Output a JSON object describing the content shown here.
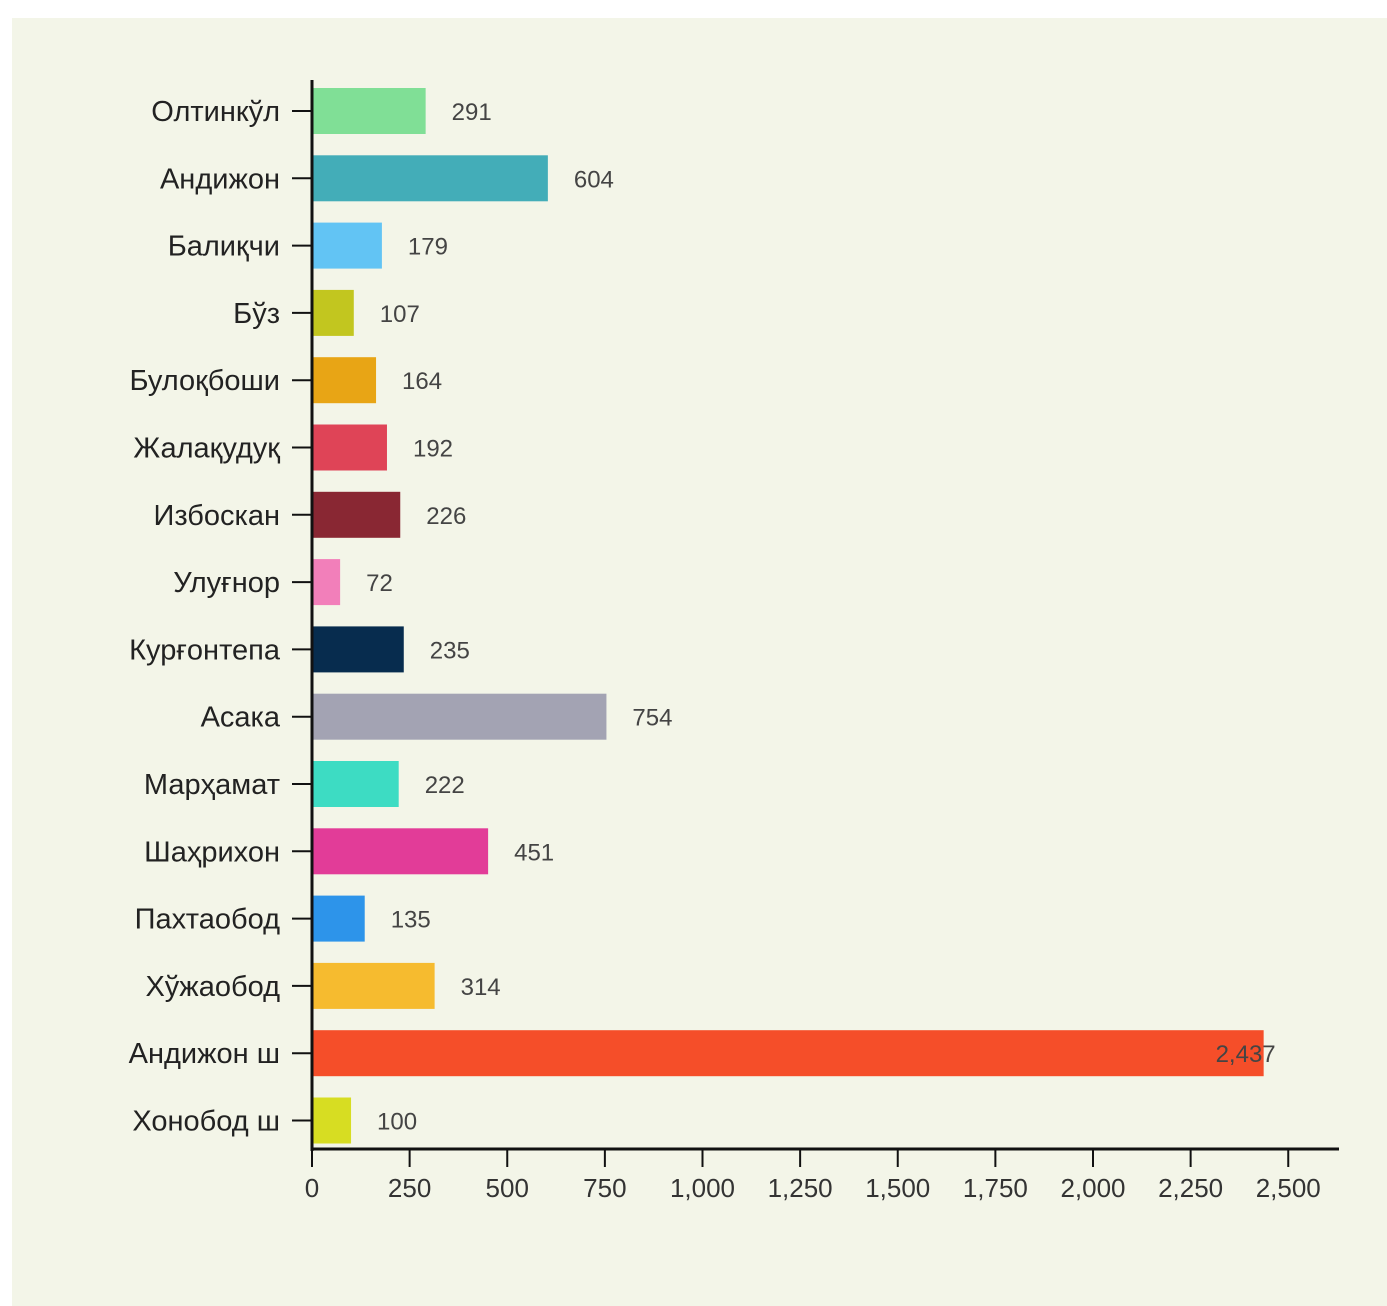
{
  "chart_data": {
    "type": "bar",
    "orientation": "horizontal",
    "title": "",
    "xlabel": "",
    "ylabel": "",
    "xlim": [
      0,
      2600
    ],
    "grid": false,
    "legend": "none",
    "categories": [
      "Олтинкўл",
      "Андижон",
      "Балиқчи",
      "Бўз",
      "Булоқбоши",
      "Жалақудуқ",
      "Избоскан",
      "Улуғнор",
      "Курғонтепа",
      "Асака",
      "Марҳамат",
      "Шаҳрихон",
      "Пахтаобод",
      "Хўжаобод",
      "Андижон ш",
      "Хонобод ш"
    ],
    "values": [
      291,
      604,
      179,
      107,
      164,
      192,
      226,
      72,
      235,
      754,
      222,
      451,
      135,
      314,
      2437,
      100
    ],
    "value_labels": [
      "291",
      "604",
      "179",
      "107",
      "164",
      "192",
      "226",
      "72",
      "235",
      "754",
      "222",
      "451",
      "135",
      "314",
      "2,437",
      "100"
    ],
    "colors": [
      "#80df96",
      "#43adb8",
      "#62c4f4",
      "#c2c61f",
      "#e8a515",
      "#df4457",
      "#892733",
      "#f27fba",
      "#072c4e",
      "#a3a3b3",
      "#3ddcc3",
      "#e23c98",
      "#2d94ea",
      "#f6bb2f",
      "#f54e29",
      "#d7dd22"
    ],
    "x_ticks": [
      0,
      250,
      500,
      750,
      1000,
      1250,
      1500,
      1750,
      2000,
      2250,
      2500
    ],
    "x_tick_labels": [
      "0",
      "250",
      "500",
      "750",
      "1,000",
      "1,250",
      "1,500",
      "1,750",
      "2,000",
      "2,250",
      "2,500"
    ]
  }
}
